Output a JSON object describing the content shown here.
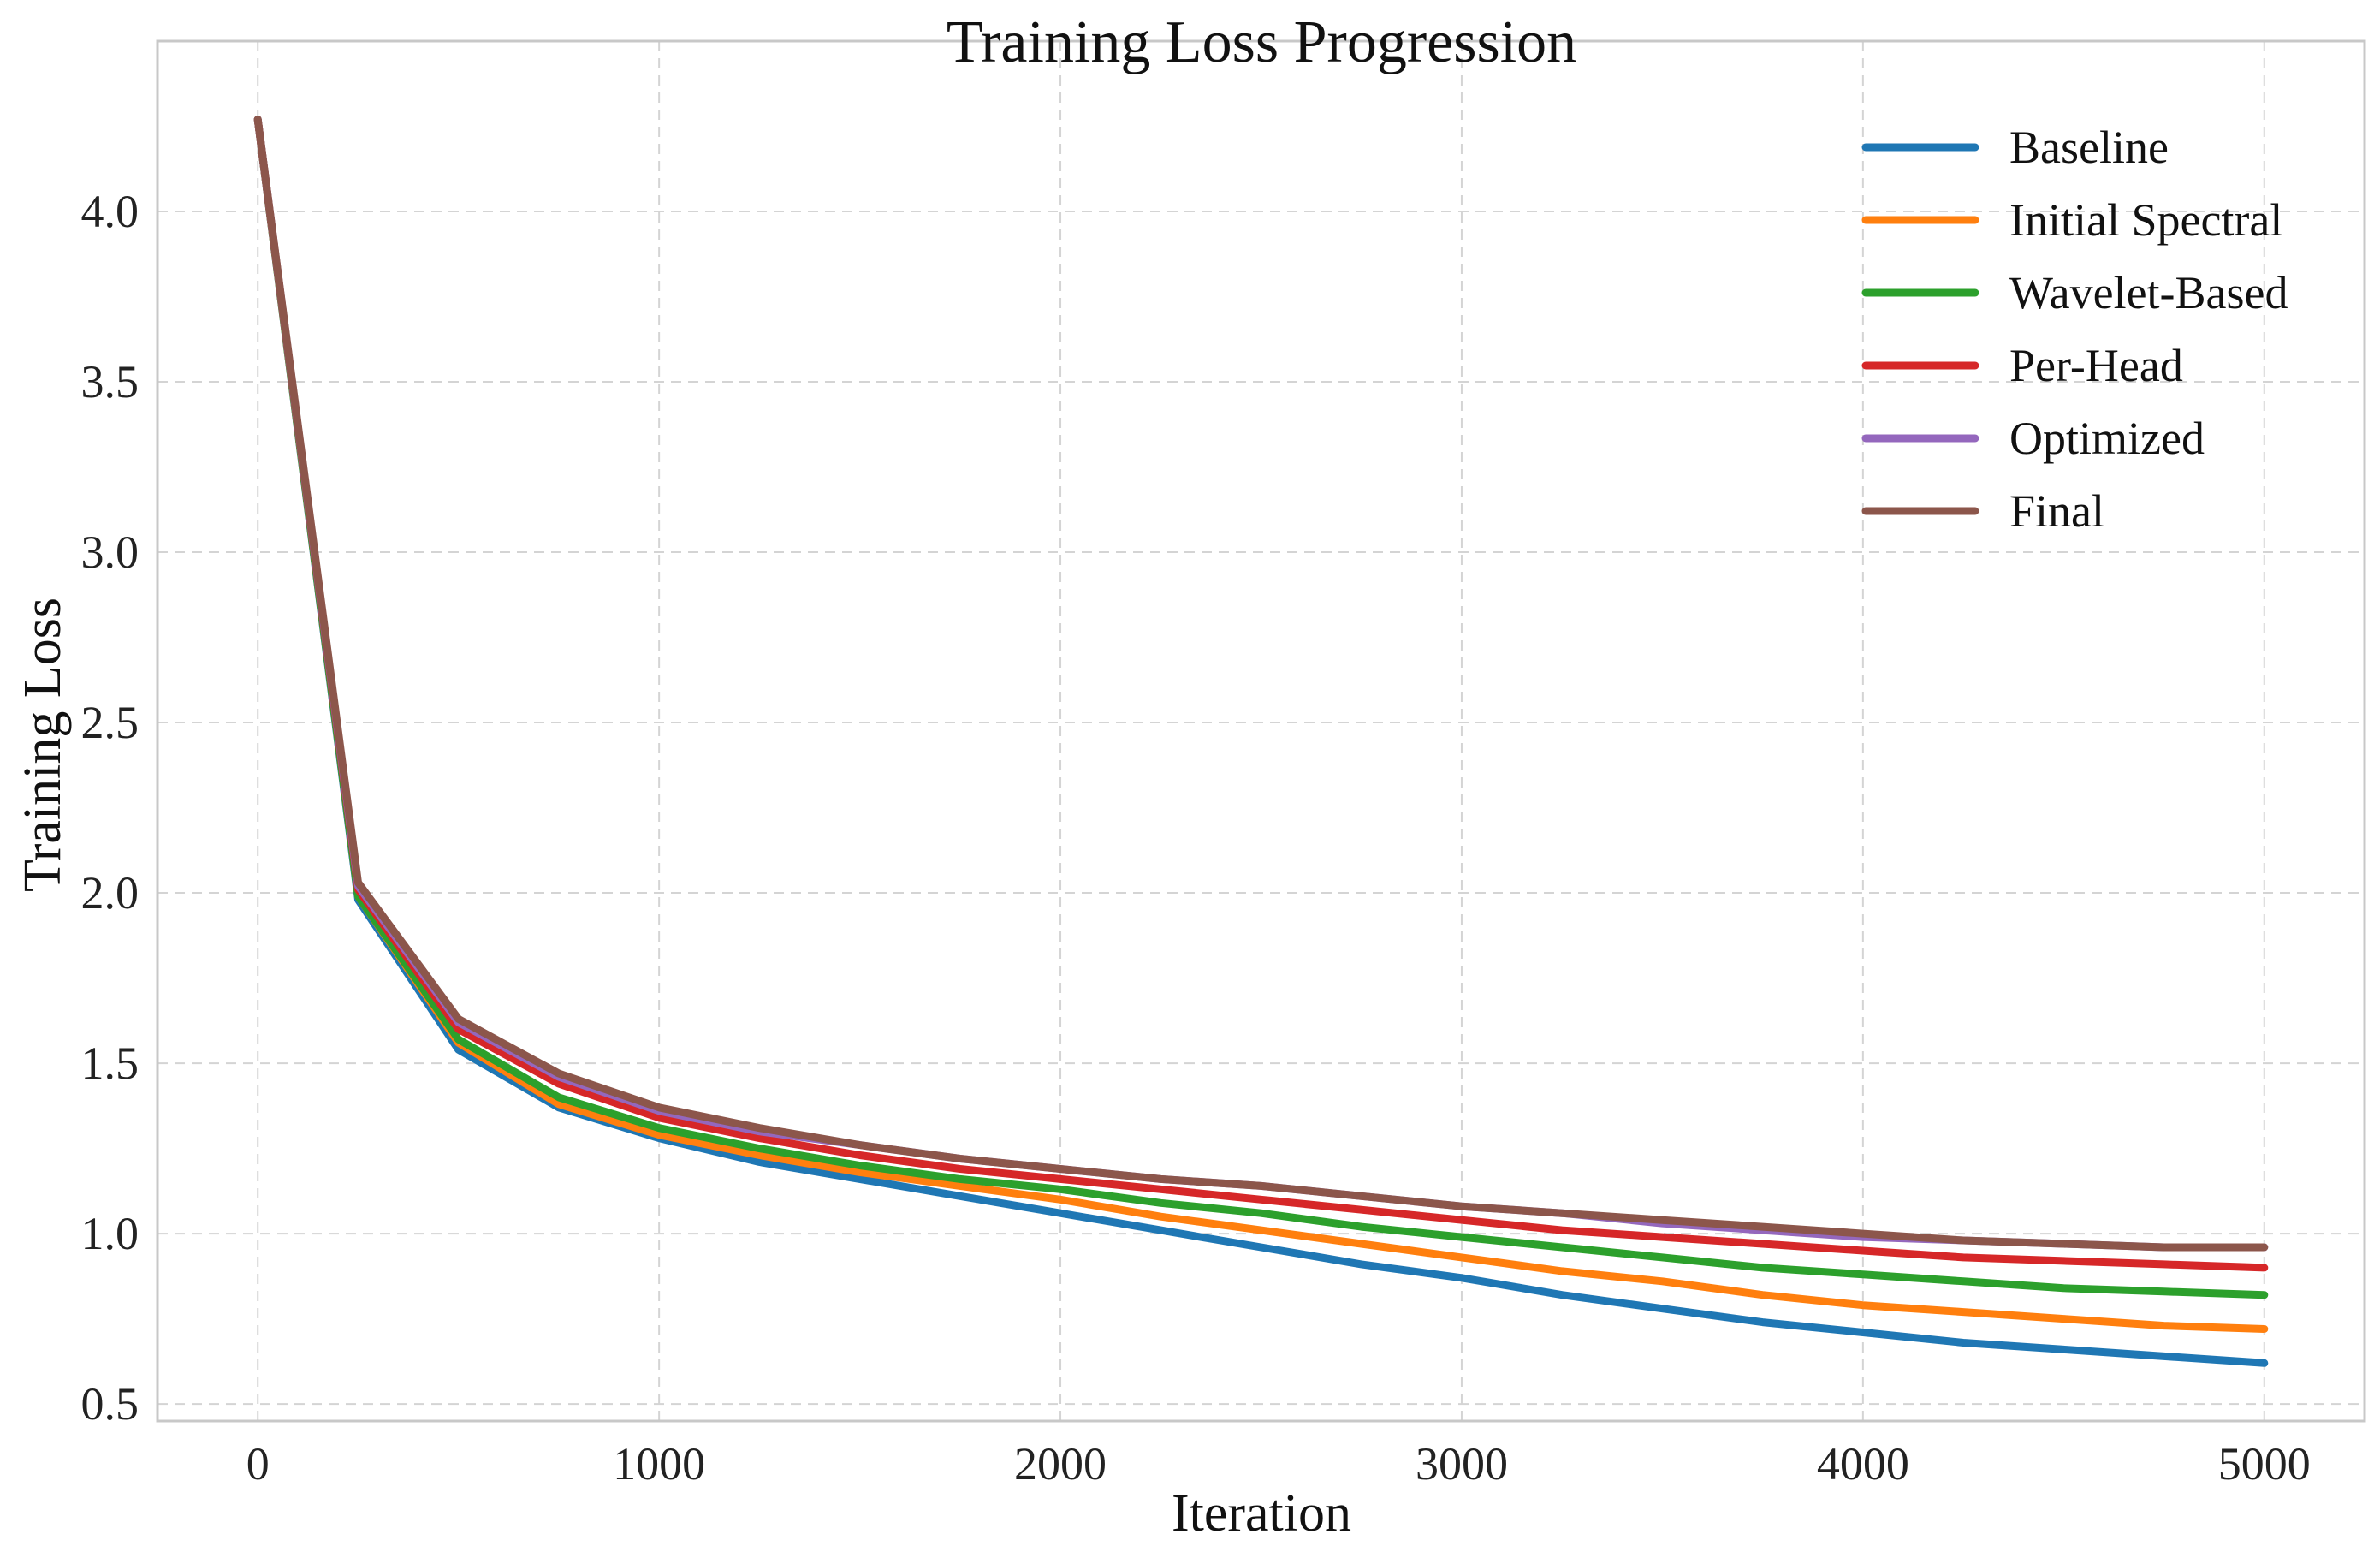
{
  "chart_data": {
    "type": "line",
    "title": "Training Loss Progression",
    "xlabel": "Iteration",
    "ylabel": "Training Loss",
    "xlim": [
      -250,
      5250
    ],
    "ylim": [
      0.45,
      4.5
    ],
    "xticks": [
      0,
      1000,
      2000,
      3000,
      4000,
      5000
    ],
    "yticks": [
      0.5,
      1.0,
      1.5,
      2.0,
      2.5,
      3.0,
      3.5,
      4.0
    ],
    "xtick_labels": [
      "0",
      "1000",
      "2000",
      "3000",
      "4000",
      "5000"
    ],
    "ytick_labels": [
      "0.5",
      "1.0",
      "1.5",
      "2.0",
      "2.5",
      "3.0",
      "3.5",
      "4.0"
    ],
    "grid": true,
    "legend_position": "top-right",
    "x": [
      0,
      250,
      500,
      750,
      1000,
      1250,
      1500,
      1750,
      2000,
      2250,
      2500,
      2750,
      3000,
      3250,
      3500,
      3750,
      4000,
      4250,
      4500,
      4750,
      5000
    ],
    "series": [
      {
        "name": "Baseline",
        "color": "#1f77b4",
        "values": [
          4.27,
          1.98,
          1.54,
          1.37,
          1.28,
          1.21,
          1.16,
          1.11,
          1.06,
          1.01,
          0.96,
          0.91,
          0.87,
          0.82,
          0.78,
          0.74,
          0.71,
          0.68,
          0.66,
          0.64,
          0.62
        ]
      },
      {
        "name": "Initial Spectral",
        "color": "#ff7f0e",
        "values": [
          4.27,
          1.99,
          1.56,
          1.38,
          1.29,
          1.23,
          1.18,
          1.14,
          1.1,
          1.05,
          1.01,
          0.97,
          0.93,
          0.89,
          0.86,
          0.82,
          0.79,
          0.77,
          0.75,
          0.73,
          0.72
        ]
      },
      {
        "name": "Wavelet-Based",
        "color": "#2ca02c",
        "values": [
          4.27,
          1.99,
          1.57,
          1.4,
          1.31,
          1.25,
          1.2,
          1.16,
          1.13,
          1.09,
          1.06,
          1.02,
          0.99,
          0.96,
          0.93,
          0.9,
          0.88,
          0.86,
          0.84,
          0.83,
          0.82
        ]
      },
      {
        "name": "Per-Head",
        "color": "#d62728",
        "values": [
          4.27,
          2.01,
          1.6,
          1.44,
          1.34,
          1.28,
          1.23,
          1.19,
          1.16,
          1.13,
          1.1,
          1.07,
          1.04,
          1.01,
          0.99,
          0.97,
          0.95,
          0.93,
          0.92,
          0.91,
          0.9
        ]
      },
      {
        "name": "Optimized",
        "color": "#9467bd",
        "values": [
          4.27,
          2.02,
          1.62,
          1.46,
          1.36,
          1.3,
          1.26,
          1.22,
          1.19,
          1.16,
          1.14,
          1.11,
          1.08,
          1.06,
          1.03,
          1.01,
          0.99,
          0.98,
          0.97,
          0.96,
          0.96
        ]
      },
      {
        "name": "Final",
        "color": "#8c564b",
        "values": [
          4.27,
          2.03,
          1.63,
          1.47,
          1.37,
          1.31,
          1.26,
          1.22,
          1.19,
          1.16,
          1.14,
          1.11,
          1.08,
          1.06,
          1.04,
          1.02,
          1.0,
          0.98,
          0.97,
          0.96,
          0.96
        ]
      }
    ]
  }
}
